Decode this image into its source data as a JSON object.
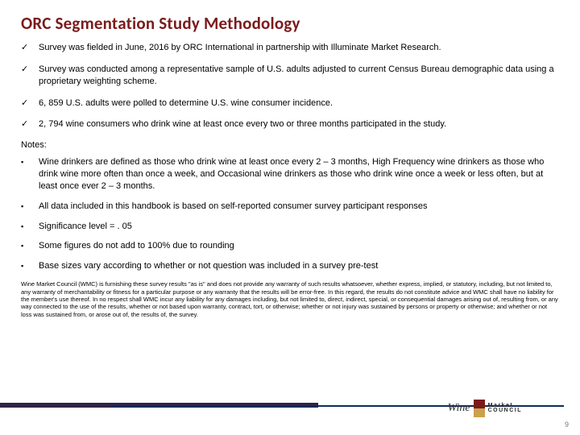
{
  "title": "ORC Segmentation Study Methodology",
  "checks": [
    "Survey was fielded in June, 2016 by ORC International in partnership with Illuminate Market Research.",
    "Survey was conducted among a representative sample of U.S. adults adjusted to current Census Bureau demographic data using a proprietary weighting scheme.",
    "6, 859 U.S. adults were polled to determine U.S. wine consumer incidence.",
    "2, 794 wine consumers who drink wine at least once every two or three months participated in the study."
  ],
  "notes_heading": "Notes:",
  "notes": [
    "Wine drinkers are defined as those who drink wine at least once every 2 – 3 months, High Frequency wine drinkers as those who drink wine more often than once a week, and Occasional wine drinkers as those who drink wine once a week or less often, but at least once ever 2 – 3 months.",
    "All data included in this handbook is based on self-reported consumer survey participant responses",
    "Significance level = . 05",
    "Some figures do not add to 100% due to rounding",
    "Base sizes vary according to whether or not question was included in a survey pre-test"
  ],
  "disclaimer": "Wine Market Council (WMC) is furnishing these survey results \"as is\" and does not provide any warranty of such results whatsoever, whether express, implied, or statutory, including, but not limited to, any warranty of merchantability or fitness for a particular purpose or any warranty that the results will be error-free. In this regard, the results do not constitute advice and WMC shall have no liability for the member's use thereof. In no respect shall WMC incur any liability for any damages including, but not limited to, direct, indirect, special, or consequential damages arising out of, resulting from, or any way connected to the use of the results, whether or not based upon warranty, contract, tort, or otherwise; whether or not injury was sustained by persons or property or otherwise; and whether or not loss was sustained from, or arose out of, the results of, the survey.",
  "logo": {
    "wine": "Wine",
    "market": "Market",
    "council": "COUNCIL"
  },
  "glyph": {
    "check": "✓",
    "box": "▪"
  },
  "page_number": "9",
  "colors": {
    "title": "#7a1b1b",
    "footer_dark": "#2e2348",
    "footer_blue": "#102a5a",
    "swatch_top": "#7a1b1b",
    "swatch_bot": "#caa24a"
  }
}
